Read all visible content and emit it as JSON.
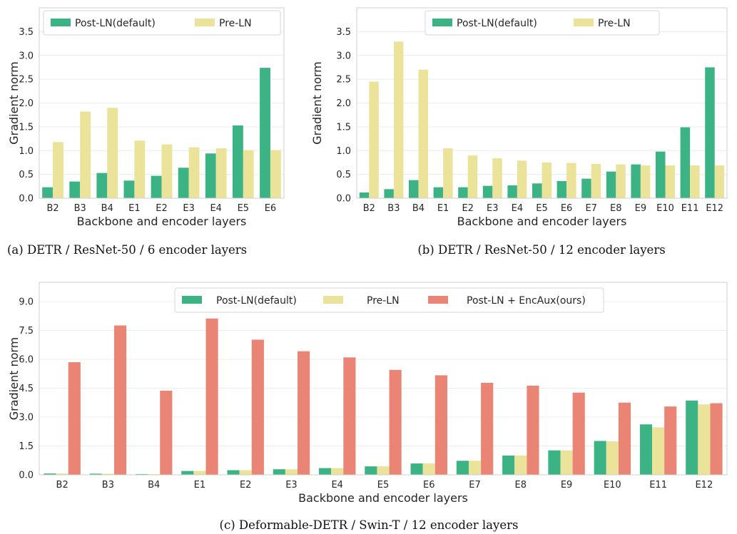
{
  "colors": {
    "post_ln": "#3cb384",
    "pre_ln": "#ebe39a",
    "encaux": "#ea8475",
    "grid": "#ececec",
    "frame": "#cfcfcf"
  },
  "chart_data": [
    {
      "type": "bar",
      "caption": "(a)  DETR / ResNet-50 / 6 encoder layers",
      "xlabel": "Backbone and encoder layers",
      "ylabel": "Gradient norm",
      "ylim": [
        0,
        4.0
      ],
      "yticks": [
        "0.0",
        "0.5",
        "1.0",
        "1.5",
        "2.0",
        "2.5",
        "3.0",
        "3.5"
      ],
      "ytick_values": [
        0,
        0.5,
        1.0,
        1.5,
        2.0,
        2.5,
        3.0,
        3.5
      ],
      "categories": [
        "B2",
        "B3",
        "B4",
        "E1",
        "E2",
        "E3",
        "E4",
        "E5",
        "E6"
      ],
      "legend": "top",
      "grid": true,
      "series": [
        {
          "name": "Post-LN(default)",
          "color_key": "post_ln",
          "values": [
            0.23,
            0.35,
            0.53,
            0.37,
            0.47,
            0.64,
            0.94,
            1.53,
            2.74
          ]
        },
        {
          "name": "Pre-LN",
          "color_key": "pre_ln",
          "values": [
            1.18,
            1.82,
            1.9,
            1.21,
            1.13,
            1.07,
            1.05,
            1.01,
            1.01
          ]
        }
      ]
    },
    {
      "type": "bar",
      "caption": "(b)  DETR / ResNet-50 / 12 encoder layers",
      "xlabel": "Backbone and encoder layers",
      "ylabel": "Gradient norm",
      "ylim": [
        0,
        4.0
      ],
      "yticks": [
        "0.0",
        "0.5",
        "1.0",
        "1.5",
        "2.0",
        "2.5",
        "3.0",
        "3.5"
      ],
      "ytick_values": [
        0,
        0.5,
        1.0,
        1.5,
        2.0,
        2.5,
        3.0,
        3.5
      ],
      "categories": [
        "B2",
        "B3",
        "B4",
        "E1",
        "E2",
        "E3",
        "E4",
        "E5",
        "E6",
        "E7",
        "E8",
        "E9",
        "E10",
        "E11",
        "E12"
      ],
      "legend": "top",
      "grid": true,
      "series": [
        {
          "name": "Post-LN(default)",
          "color_key": "post_ln",
          "values": [
            0.12,
            0.19,
            0.38,
            0.23,
            0.23,
            0.26,
            0.27,
            0.31,
            0.36,
            0.41,
            0.56,
            0.71,
            0.98,
            1.49,
            2.75
          ]
        },
        {
          "name": "Pre-LN",
          "color_key": "pre_ln",
          "values": [
            2.45,
            3.29,
            2.7,
            1.05,
            0.9,
            0.84,
            0.79,
            0.75,
            0.74,
            0.72,
            0.71,
            0.69,
            0.69,
            0.69,
            0.69
          ]
        }
      ]
    },
    {
      "type": "bar",
      "caption": "(c)  Deformable-DETR / Swin-T / 12 encoder layers",
      "xlabel": "Backbone and encoder layers",
      "ylabel": "Gradient norm",
      "ylim": [
        0,
        10.0
      ],
      "yticks": [
        "0.0",
        "1.5",
        "3.0",
        "4.5",
        "6.0",
        "7.5",
        "9.0"
      ],
      "ytick_values": [
        0,
        1.5,
        3.0,
        4.5,
        6.0,
        7.5,
        9.0
      ],
      "categories": [
        "B2",
        "B3",
        "B4",
        "E1",
        "E2",
        "E3",
        "E4",
        "E5",
        "E6",
        "E7",
        "E8",
        "E9",
        "E10",
        "E11",
        "E12"
      ],
      "legend": "top",
      "grid": true,
      "series": [
        {
          "name": "Post-LN(default)",
          "color_key": "post_ln",
          "values": [
            0.07,
            0.06,
            0.04,
            0.2,
            0.24,
            0.29,
            0.35,
            0.44,
            0.59,
            0.73,
            1.0,
            1.27,
            1.76,
            2.62,
            3.86
          ]
        },
        {
          "name": "Pre-LN",
          "color_key": "pre_ln",
          "values": [
            0.07,
            0.06,
            0.04,
            0.2,
            0.24,
            0.29,
            0.35,
            0.44,
            0.59,
            0.73,
            1.0,
            1.27,
            1.74,
            2.47,
            3.66
          ]
        },
        {
          "name": "Post-LN + EncAux(ours)",
          "color_key": "encaux",
          "values": [
            5.85,
            7.76,
            4.37,
            8.12,
            7.02,
            6.42,
            6.1,
            5.45,
            5.17,
            4.78,
            4.63,
            4.27,
            3.75,
            3.55,
            3.72
          ]
        }
      ]
    }
  ]
}
